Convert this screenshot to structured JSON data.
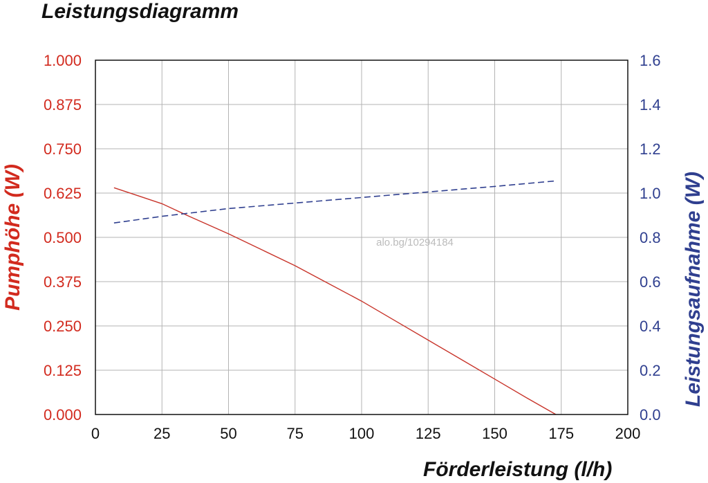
{
  "chart_data": {
    "type": "line",
    "title": "Leistungsdiagramm",
    "xlabel": "Förderleistung (l/h)",
    "ylabel_left": "Pumphöhe (W)",
    "ylabel_right": "Leistungsaufnahme (W)",
    "xlim": [
      0,
      200
    ],
    "ylim_left": [
      0,
      1.0
    ],
    "ylim_right": [
      0,
      1.6
    ],
    "x_ticks": [
      "0",
      "25",
      "50",
      "75",
      "100",
      "125",
      "150",
      "175",
      "200"
    ],
    "y_left_ticks": [
      "0.000",
      "0.125",
      "0.250",
      "0.375",
      "0.500",
      "0.625",
      "0.750",
      "0.875",
      "1.000"
    ],
    "y_right_ticks": [
      "0.0",
      "0.2",
      "0.4",
      "0.6",
      "0.8",
      "1.0",
      "1.2",
      "1.4",
      "1.6"
    ],
    "grid": true,
    "series": [
      {
        "axis": "left",
        "color": "#c8342a",
        "style": "solid",
        "x": [
          7,
          15,
          25,
          35,
          50,
          62.5,
          75,
          87.5,
          100,
          112.5,
          125,
          137.5,
          150,
          162.5,
          173
        ],
        "y": [
          0.64,
          0.62,
          0.595,
          0.56,
          0.51,
          0.465,
          0.42,
          0.37,
          0.32,
          0.265,
          0.21,
          0.155,
          0.1,
          0.045,
          0.0
        ]
      },
      {
        "axis": "right",
        "color": "#2f3f8f",
        "style": "dashed",
        "x": [
          7,
          25,
          50,
          75,
          100,
          125,
          150,
          173
        ],
        "y": [
          0.865,
          0.895,
          0.93,
          0.955,
          0.98,
          1.005,
          1.03,
          1.055
        ]
      }
    ]
  },
  "watermark": "alo.bg/10294184"
}
